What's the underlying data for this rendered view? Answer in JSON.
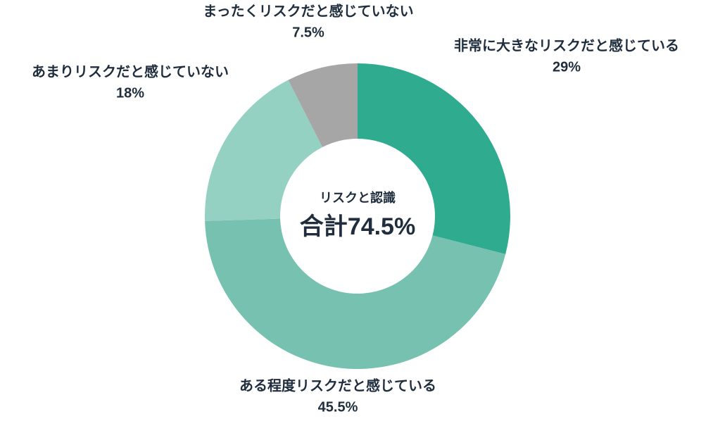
{
  "chart_data": {
    "type": "donut",
    "categories": [
      "非常に大きなリスクだと感じている",
      "ある程度リスクだと感じている",
      "あまりリスクだと感じていない",
      "まったくリスクだと感じていない"
    ],
    "values": [
      29,
      45.5,
      18,
      7.5
    ],
    "value_labels": [
      "29%",
      "45.5%",
      "18%",
      "7.5%"
    ],
    "colors": [
      "#2fab8f",
      "#76c1b0",
      "#94d1c3",
      "#a6a6a6"
    ],
    "center_title": "リスクと認識",
    "center_value": "合計74.5%"
  }
}
